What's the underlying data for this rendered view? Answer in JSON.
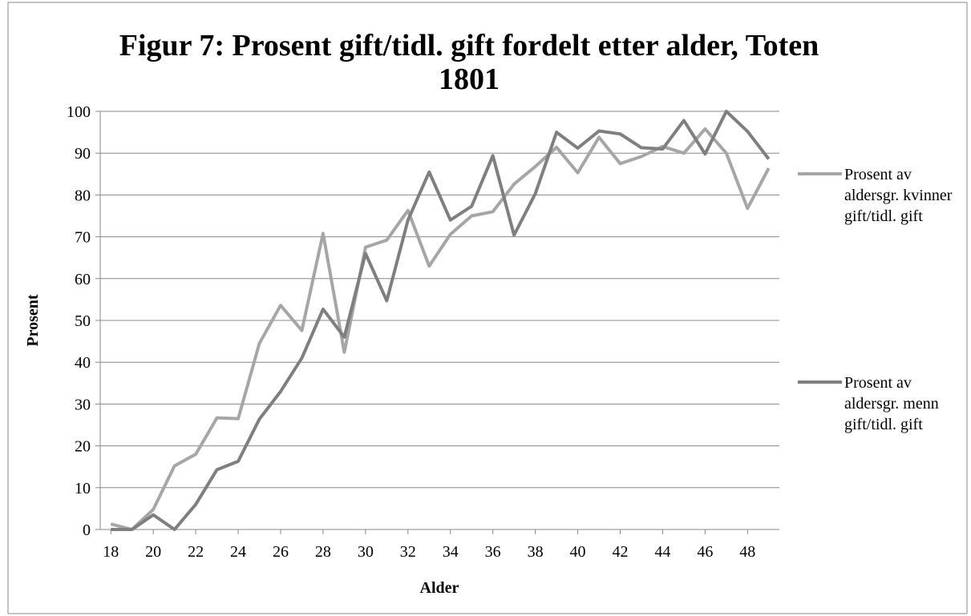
{
  "chart_data": {
    "type": "line",
    "title": "Figur 7: Prosent gift/tidl. gift fordelt etter alder, Toten 1801",
    "x_label": "Alder",
    "y_label": "Prosent",
    "x": [
      18,
      19,
      20,
      21,
      22,
      23,
      24,
      25,
      26,
      27,
      28,
      29,
      30,
      31,
      32,
      33,
      34,
      35,
      36,
      37,
      38,
      39,
      40,
      41,
      42,
      43,
      44,
      45,
      46,
      47,
      48,
      49
    ],
    "series": [
      {
        "name": "Prosent av aldersgr. kvinner gift/tidl. gift",
        "color": "#a6a6a6",
        "values": [
          1.3,
          0,
          4.8,
          15.2,
          18,
          26.7,
          26.5,
          44.5,
          53.6,
          47.6,
          70.8,
          42.4,
          67.5,
          69.2,
          76.3,
          63,
          70.6,
          75,
          76,
          82.6,
          86.8,
          91.4,
          85.3,
          93.8,
          87.5,
          89.2,
          91.6,
          90,
          95.8,
          90,
          76.8,
          86.4
        ]
      },
      {
        "name": "Prosent av aldersgr. menn gift/tidl. gift",
        "color": "#7f7f7f",
        "values": [
          0,
          0,
          3.5,
          0,
          6,
          14.3,
          16.3,
          26.4,
          33,
          41,
          52.7,
          46,
          66,
          54.7,
          74,
          85.5,
          74,
          77.3,
          89.4,
          70.4,
          80.3,
          95,
          91.2,
          95.3,
          94.6,
          91.3,
          91,
          97.8,
          89.8,
          100,
          95.2,
          88.6
        ]
      }
    ],
    "xlim": [
      17.5,
      49.5
    ],
    "xticks": [
      18,
      20,
      22,
      24,
      26,
      28,
      30,
      32,
      34,
      36,
      38,
      40,
      42,
      44,
      46,
      48
    ],
    "ylim": [
      0,
      100
    ],
    "yticks": [
      0,
      10,
      20,
      30,
      40,
      50,
      60,
      70,
      80,
      90,
      100
    ],
    "grid": true,
    "legend": "right"
  }
}
